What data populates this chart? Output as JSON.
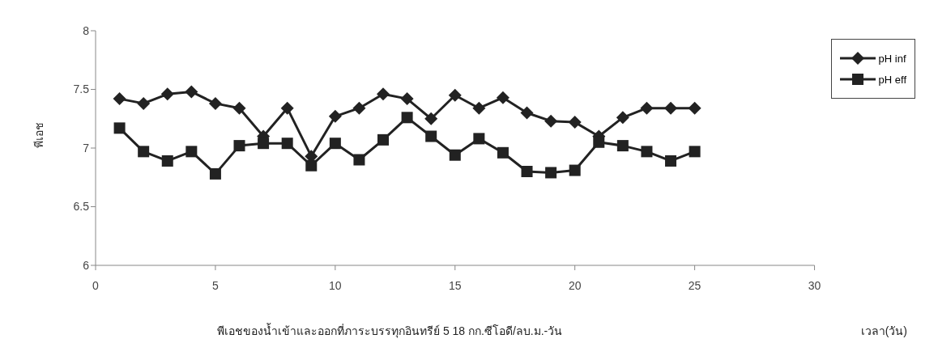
{
  "chart_data": {
    "type": "line",
    "title": "พีเอชของน้ำเข้าและออกที่ภาระบรรทุกอินทรีย์ 5 18 กก.ซีโอดี/ลบ.ม.-วัน",
    "xlabel": "เวลา(วัน)",
    "ylabel": "พีเอช",
    "x": [
      1,
      2,
      3,
      4,
      5,
      6,
      7,
      8,
      9,
      10,
      11,
      12,
      13,
      14,
      15,
      16,
      17,
      18,
      19,
      20,
      21,
      22,
      23,
      24,
      25
    ],
    "series": [
      {
        "name": "pH inf",
        "color": "#222222",
        "marker": "diamond",
        "values": [
          7.42,
          7.38,
          7.46,
          7.48,
          7.38,
          7.34,
          7.1,
          7.34,
          6.93,
          7.27,
          7.34,
          7.46,
          7.42,
          7.25,
          7.45,
          7.34,
          7.43,
          7.3,
          7.23,
          7.22,
          7.1,
          7.26,
          7.34,
          7.34,
          7.34
        ]
      },
      {
        "name": "pH eff",
        "color": "#222222",
        "marker": "square",
        "values": [
          7.17,
          6.97,
          6.89,
          6.97,
          6.78,
          7.02,
          7.04,
          7.04,
          6.85,
          7.04,
          6.9,
          7.07,
          7.26,
          7.1,
          6.94,
          7.08,
          6.96,
          6.8,
          6.79,
          6.81,
          7.05,
          7.02,
          6.97,
          6.89,
          6.97
        ]
      }
    ],
    "xlim": [
      0,
      30
    ],
    "xticks": [
      0,
      5,
      10,
      15,
      20,
      25,
      30
    ],
    "ylim": [
      6,
      8
    ],
    "yticks": [
      6,
      6.5,
      7,
      7.5,
      8
    ],
    "grid": false,
    "legend": "top right",
    "line_style": "solid"
  }
}
